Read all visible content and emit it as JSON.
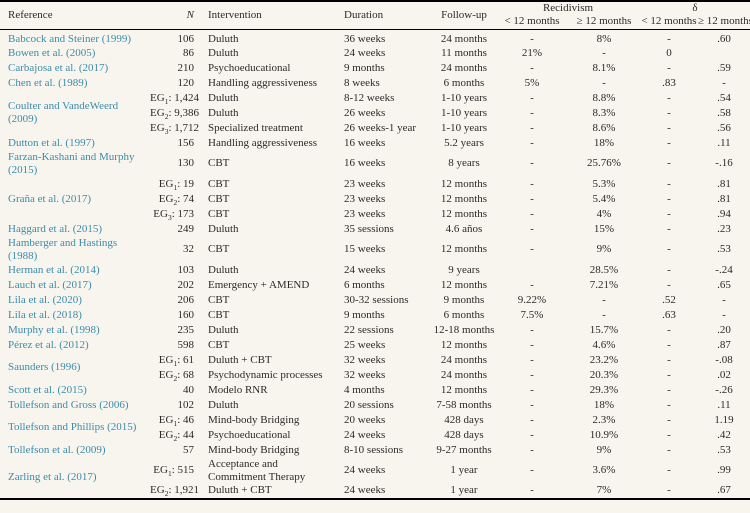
{
  "colors": {
    "background": "#f8f5ef",
    "citation_link": "#3a8ca8",
    "rule": "#000000"
  },
  "table": {
    "headers": {
      "reference": "Reference",
      "n": "N",
      "intervention": "Intervention",
      "duration": "Duration",
      "followup": "Follow-up",
      "recidivism": "Recidivism",
      "delta": "δ",
      "lt12": "< 12 months",
      "gte12": "≥ 12 months"
    },
    "groups": [
      {
        "reference": "Babcock and Steiner (1999)",
        "rows": [
          {
            "n": "106",
            "intervention": "Duluth",
            "duration": "36 weeks",
            "followup": "24 months",
            "rec_lt12": "-",
            "rec_gte12": "8%",
            "delta_lt12": "-",
            "delta_gte12": ".60"
          }
        ]
      },
      {
        "reference": "Bowen et al. (2005)",
        "rows": [
          {
            "n": "86",
            "intervention": "Duluth",
            "duration": "24 weeks",
            "followup": "11 months",
            "rec_lt12": "21%",
            "rec_gte12": "-",
            "delta_lt12": "0",
            "delta_gte12": ""
          }
        ]
      },
      {
        "reference": "Carbajosa et al. (2017)",
        "rows": [
          {
            "n": "210",
            "intervention": "Psychoeducational",
            "duration": "9 months",
            "followup": "24 months",
            "rec_lt12": "-",
            "rec_gte12": "8.1%",
            "delta_lt12": "-",
            "delta_gte12": ".59"
          }
        ]
      },
      {
        "reference": "Chen et al. (1989)",
        "rows": [
          {
            "n": "120",
            "intervention": "Handling aggressiveness",
            "duration": "8 weeks",
            "followup": "6 months",
            "rec_lt12": "5%",
            "rec_gte12": "-",
            "delta_lt12": ".83",
            "delta_gte12": "-"
          }
        ]
      },
      {
        "reference": "Coulter and VandeWeerd (2009)",
        "rows": [
          {
            "n": "EG₁: 1,424",
            "intervention": "Duluth",
            "duration": "8-12 weeks",
            "followup": "1-10 years",
            "rec_lt12": "-",
            "rec_gte12": "8.8%",
            "delta_lt12": "-",
            "delta_gte12": ".54"
          },
          {
            "n": "EG₂: 9,386",
            "intervention": "Duluth",
            "duration": "26 weeks",
            "followup": "1-10 years",
            "rec_lt12": "-",
            "rec_gte12": "8.3%",
            "delta_lt12": "-",
            "delta_gte12": ".58"
          },
          {
            "n": "EG₃: 1,712",
            "intervention": "Specialized treatment",
            "duration": "26 weeks-1 year",
            "followup": "1-10 years",
            "rec_lt12": "-",
            "rec_gte12": "8.6%",
            "delta_lt12": "-",
            "delta_gte12": ".56"
          }
        ]
      },
      {
        "reference": "Dutton et al. (1997)",
        "rows": [
          {
            "n": "156",
            "intervention": "Handling aggressiveness",
            "duration": "16 weeks",
            "followup": "5.2 years",
            "rec_lt12": "-",
            "rec_gte12": "18%",
            "delta_lt12": "-",
            "delta_gte12": ".11"
          }
        ]
      },
      {
        "reference": "Farzan-Kashani and Murphy (2015)",
        "rows": [
          {
            "n": "130",
            "intervention": "CBT",
            "duration": "16 weeks",
            "followup": "8 years",
            "rec_lt12": "-",
            "rec_gte12": "25.76%",
            "delta_lt12": "-",
            "delta_gte12": "-.16"
          }
        ]
      },
      {
        "reference": "Graña et al. (2017)",
        "rows": [
          {
            "n": "EG₁: 19",
            "intervention": "CBT",
            "duration": "23 weeks",
            "followup": "12 months",
            "rec_lt12": "-",
            "rec_gte12": "5.3%",
            "delta_lt12": "-",
            "delta_gte12": ".81"
          },
          {
            "n": "EG₂: 74",
            "intervention": "CBT",
            "duration": "23 weeks",
            "followup": "12 months",
            "rec_lt12": "-",
            "rec_gte12": "5.4%",
            "delta_lt12": "-",
            "delta_gte12": ".81"
          },
          {
            "n": "EG₃: 173",
            "intervention": "CBT",
            "duration": "23 weeks",
            "followup": "12 months",
            "rec_lt12": "-",
            "rec_gte12": "4%",
            "delta_lt12": "-",
            "delta_gte12": ".94"
          }
        ]
      },
      {
        "reference": "Haggard et al. (2015)",
        "rows": [
          {
            "n": "249",
            "intervention": "Duluth",
            "duration": "35 sessions",
            "followup": "4.6 años",
            "rec_lt12": "-",
            "rec_gte12": "15%",
            "delta_lt12": "-",
            "delta_gte12": ".23"
          }
        ]
      },
      {
        "reference": "Hamberger and Hastings (1988)",
        "rows": [
          {
            "n": "32",
            "intervention": "CBT",
            "duration": "15 weeks",
            "followup": "12 months",
            "rec_lt12": "-",
            "rec_gte12": "9%",
            "delta_lt12": "-",
            "delta_gte12": ".53"
          }
        ]
      },
      {
        "reference": "Herman et al. (2014)",
        "rows": [
          {
            "n": "103",
            "intervention": "Duluth",
            "duration": "24 weeks",
            "followup": "9 years",
            "rec_lt12": "",
            "rec_gte12": "28.5%",
            "delta_lt12": "-",
            "delta_gte12": "-.24"
          }
        ]
      },
      {
        "reference": "Lauch et al. (2017)",
        "rows": [
          {
            "n": "202",
            "intervention": "Emergency + AMEND",
            "duration": "6 months",
            "followup": "12 months",
            "rec_lt12": "-",
            "rec_gte12": "7.21%",
            "delta_lt12": "-",
            "delta_gte12": ".65"
          }
        ]
      },
      {
        "reference": "Lila et al. (2020)",
        "rows": [
          {
            "n": "206",
            "intervention": "CBT",
            "duration": "30-32 sessions",
            "followup": "9 months",
            "rec_lt12": "9.22%",
            "rec_gte12": "-",
            "delta_lt12": ".52",
            "delta_gte12": "-"
          }
        ]
      },
      {
        "reference": "Lila et al. (2018)",
        "rows": [
          {
            "n": "160",
            "intervention": "CBT",
            "duration": "9 months",
            "followup": "6 months",
            "rec_lt12": "7.5%",
            "rec_gte12": "-",
            "delta_lt12": ".63",
            "delta_gte12": "-"
          }
        ]
      },
      {
        "reference": "Murphy et al. (1998)",
        "rows": [
          {
            "n": "235",
            "intervention": "Duluth",
            "duration": "22 sessions",
            "followup": "12-18 months",
            "rec_lt12": "-",
            "rec_gte12": "15.7%",
            "delta_lt12": "-",
            "delta_gte12": ".20"
          }
        ]
      },
      {
        "reference": "Pérez et al. (2012)",
        "rows": [
          {
            "n": "598",
            "intervention": "CBT",
            "duration": "25 weeks",
            "followup": "12 months",
            "rec_lt12": "-",
            "rec_gte12": "4.6%",
            "delta_lt12": "-",
            "delta_gte12": ".87"
          }
        ]
      },
      {
        "reference": "Saunders (1996)",
        "rows": [
          {
            "n": "EG₁: 61",
            "intervention": "Duluth + CBT",
            "duration": "32 weeks",
            "followup": "24 months",
            "rec_lt12": "-",
            "rec_gte12": "23.2%",
            "delta_lt12": "-",
            "delta_gte12": "-.08"
          },
          {
            "n": "EG₂: 68",
            "intervention": "Psychodynamic processes",
            "duration": "32 weeks",
            "followup": "24 months",
            "rec_lt12": "-",
            "rec_gte12": "20.3%",
            "delta_lt12": "-",
            "delta_gte12": ".02"
          }
        ]
      },
      {
        "reference": "Scott et al. (2015)",
        "rows": [
          {
            "n": "40",
            "intervention": "Modelo RNR",
            "duration": "4 months",
            "followup": "12 months",
            "rec_lt12": "-",
            "rec_gte12": "29.3%",
            "delta_lt12": "-",
            "delta_gte12": "-.26"
          }
        ]
      },
      {
        "reference": "Tollefson and Gross (2006)",
        "rows": [
          {
            "n": "102",
            "intervention": "Duluth",
            "duration": "20 sessions",
            "followup": "7-58 months",
            "rec_lt12": "-",
            "rec_gte12": "18%",
            "delta_lt12": "-",
            "delta_gte12": ".11"
          }
        ]
      },
      {
        "reference": "Tollefson and Phillips (2015)",
        "rows": [
          {
            "n": "EG₁: 46",
            "intervention": "Mind-body Bridging",
            "duration": "20 weeks",
            "followup": "428 days",
            "rec_lt12": "-",
            "rec_gte12": "2.3%",
            "delta_lt12": "-",
            "delta_gte12": "1.19"
          },
          {
            "n": "EG₂: 44",
            "intervention": "Psychoeducational",
            "duration": "24 weeks",
            "followup": "428 days",
            "rec_lt12": "-",
            "rec_gte12": "10.9%",
            "delta_lt12": "-",
            "delta_gte12": ".42"
          }
        ]
      },
      {
        "reference": "Tollefson et al. (2009)",
        "rows": [
          {
            "n": "57",
            "intervention": "Mind-body Bridging",
            "duration": "8-10 sessions",
            "followup": "9-27 months",
            "rec_lt12": "-",
            "rec_gte12": "9%",
            "delta_lt12": "-",
            "delta_gte12": ".53"
          }
        ]
      },
      {
        "reference": "Zarling et al. (2017)",
        "rows": [
          {
            "n": "EG₁: 515",
            "intervention": "Acceptance and Commitment Therapy",
            "duration": "24 weeks",
            "followup": "1 year",
            "rec_lt12": "-",
            "rec_gte12": "3.6%",
            "delta_lt12": "-",
            "delta_gte12": ".99"
          },
          {
            "n": "EG₂: 1,921",
            "intervention": "Duluth + CBT",
            "duration": "24 weeks",
            "followup": "1 year",
            "rec_lt12": "-",
            "rec_gte12": "7%",
            "delta_lt12": "-",
            "delta_gte12": ".67"
          }
        ]
      }
    ]
  }
}
